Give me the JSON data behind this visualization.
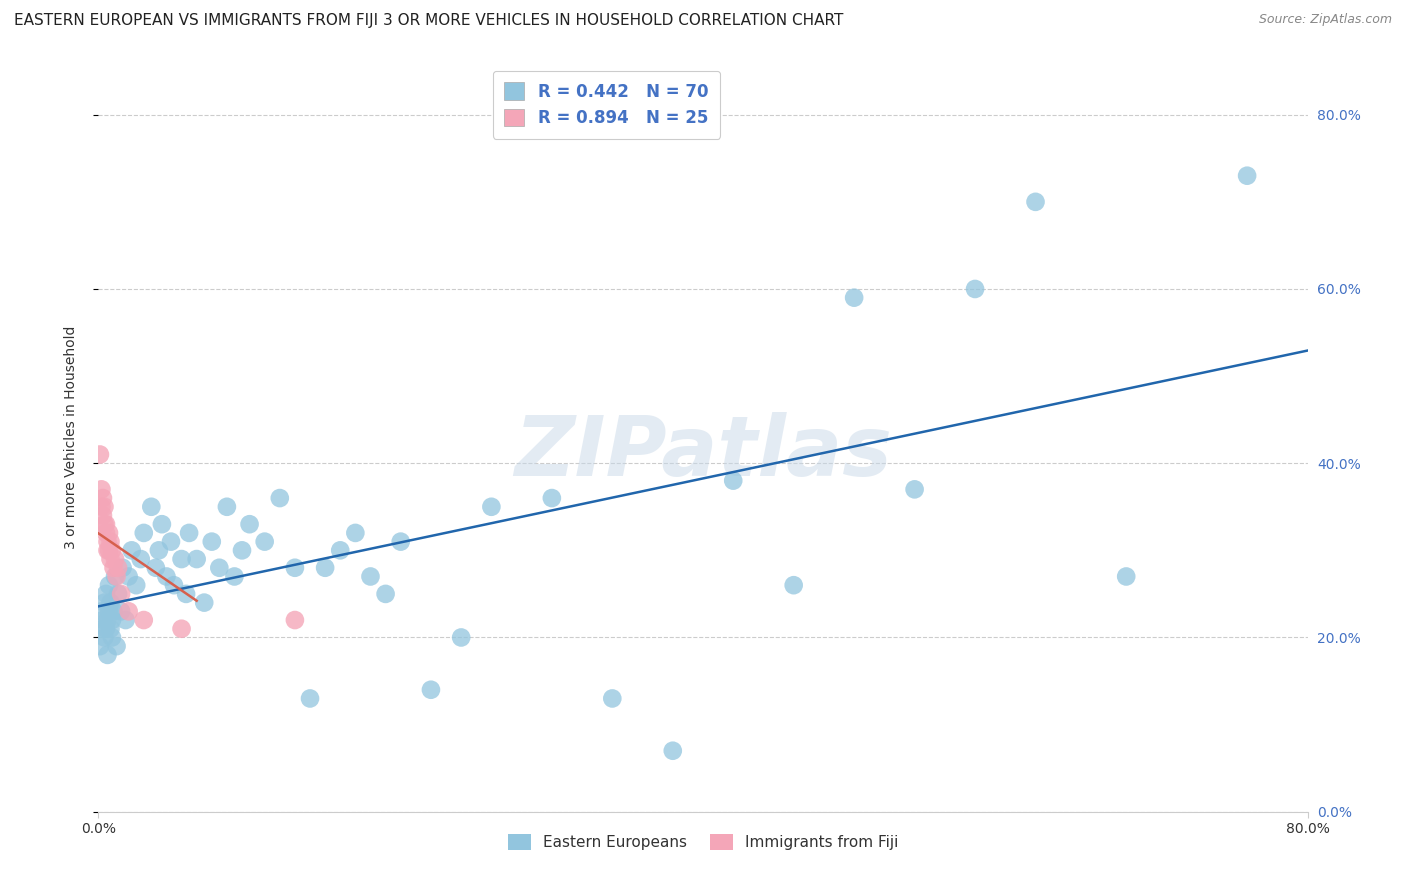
{
  "title": "EASTERN EUROPEAN VS IMMIGRANTS FROM FIJI 3 OR MORE VEHICLES IN HOUSEHOLD CORRELATION CHART",
  "source": "Source: ZipAtlas.com",
  "ylabel": "3 or more Vehicles in Household",
  "xlim": [
    0.0,
    0.8
  ],
  "ylim": [
    0.0,
    0.86
  ],
  "yticks": [
    0.0,
    0.2,
    0.4,
    0.6,
    0.8
  ],
  "xticks": [
    0.0,
    0.8
  ],
  "watermark": "ZIPatlas",
  "legend_label_blue": "Eastern Europeans",
  "legend_label_pink": "Immigrants from Fiji",
  "R_blue": 0.442,
  "N_blue": 70,
  "R_pink": 0.894,
  "N_pink": 25,
  "color_blue": "#92c5de",
  "color_blue_line": "#2166ac",
  "color_pink": "#f4a6b8",
  "color_pink_line": "#d6604d",
  "bg_color": "#ffffff",
  "grid_color": "#cccccc",
  "title_fontsize": 11,
  "axis_fontsize": 10,
  "tick_fontsize": 10,
  "watermark_color": "#c8d8e8",
  "watermark_fontsize": 60,
  "right_ytick_color": "#4472c4",
  "blue_x": [
    0.001,
    0.002,
    0.003,
    0.003,
    0.004,
    0.004,
    0.005,
    0.005,
    0.006,
    0.006,
    0.007,
    0.007,
    0.008,
    0.008,
    0.009,
    0.009,
    0.01,
    0.011,
    0.012,
    0.013,
    0.015,
    0.016,
    0.018,
    0.02,
    0.022,
    0.025,
    0.028,
    0.03,
    0.035,
    0.038,
    0.04,
    0.042,
    0.045,
    0.048,
    0.05,
    0.055,
    0.058,
    0.06,
    0.065,
    0.07,
    0.075,
    0.08,
    0.085,
    0.09,
    0.095,
    0.1,
    0.11,
    0.12,
    0.13,
    0.14,
    0.15,
    0.16,
    0.17,
    0.18,
    0.19,
    0.2,
    0.22,
    0.24,
    0.26,
    0.3,
    0.34,
    0.38,
    0.42,
    0.46,
    0.5,
    0.54,
    0.58,
    0.62,
    0.68,
    0.76
  ],
  "blue_y": [
    0.19,
    0.23,
    0.21,
    0.22,
    0.2,
    0.24,
    0.21,
    0.25,
    0.22,
    0.18,
    0.23,
    0.26,
    0.21,
    0.24,
    0.22,
    0.2,
    0.23,
    0.27,
    0.19,
    0.25,
    0.23,
    0.28,
    0.22,
    0.27,
    0.3,
    0.26,
    0.29,
    0.32,
    0.35,
    0.28,
    0.3,
    0.33,
    0.27,
    0.31,
    0.26,
    0.29,
    0.25,
    0.32,
    0.29,
    0.24,
    0.31,
    0.28,
    0.35,
    0.27,
    0.3,
    0.33,
    0.31,
    0.36,
    0.28,
    0.13,
    0.28,
    0.3,
    0.32,
    0.27,
    0.25,
    0.31,
    0.14,
    0.2,
    0.35,
    0.36,
    0.13,
    0.07,
    0.38,
    0.26,
    0.59,
    0.37,
    0.6,
    0.7,
    0.27,
    0.73
  ],
  "pink_x": [
    0.001,
    0.002,
    0.002,
    0.003,
    0.003,
    0.004,
    0.004,
    0.005,
    0.005,
    0.006,
    0.006,
    0.007,
    0.007,
    0.008,
    0.008,
    0.009,
    0.01,
    0.011,
    0.012,
    0.013,
    0.015,
    0.02,
    0.03,
    0.055,
    0.13
  ],
  "pink_y": [
    0.41,
    0.35,
    0.37,
    0.34,
    0.36,
    0.33,
    0.35,
    0.32,
    0.33,
    0.3,
    0.31,
    0.3,
    0.32,
    0.29,
    0.31,
    0.3,
    0.28,
    0.29,
    0.27,
    0.28,
    0.25,
    0.23,
    0.22,
    0.21,
    0.22
  ],
  "pink_line_x0": 0.0,
  "pink_line_x1": 0.065,
  "blue_line_y0": 0.195,
  "blue_line_y1": 0.585
}
